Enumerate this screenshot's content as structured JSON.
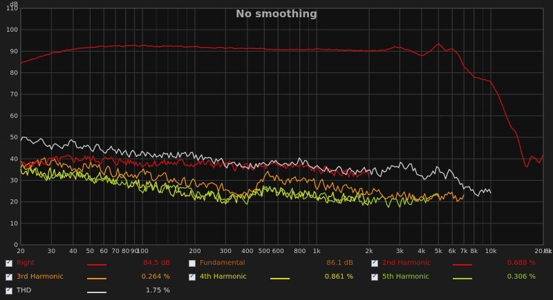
{
  "chart_data": {
    "type": "line",
    "title": "No smoothing",
    "yunit": "dB",
    "xunit": "Hz",
    "xscale": "log",
    "xlim": [
      20,
      20000
    ],
    "ylim": [
      0,
      110
    ],
    "ytick_values": [
      0,
      10,
      20,
      30,
      40,
      50,
      60,
      70,
      80,
      90,
      100,
      110
    ],
    "yticks": [
      "0",
      "10",
      "20",
      "30",
      "40",
      "50",
      "60",
      "70",
      "80",
      "90",
      "100",
      "110"
    ],
    "xtick_values": [
      20,
      30,
      40,
      50,
      60,
      70,
      80,
      90,
      100,
      200,
      300,
      400,
      500,
      600,
      800,
      1000,
      2000,
      3000,
      4000,
      5000,
      6000,
      7000,
      8000,
      10000,
      20000
    ],
    "xticks": [
      "20",
      "30",
      "40",
      "50",
      "60",
      "70",
      "80",
      "90",
      "100",
      "200",
      "300",
      "400",
      "500",
      "600",
      "800",
      "1k",
      "2k",
      "3k",
      "4k",
      "5k",
      "6k",
      "7k",
      "8k",
      "10k",
      "20.0k"
    ],
    "grid": true,
    "series": [
      {
        "name": "Right",
        "color": "#cc1010",
        "noise": 0.25,
        "x": [
          20,
          25,
          30,
          40,
          50,
          70,
          100,
          150,
          200,
          300,
          400,
          500,
          700,
          1000,
          1500,
          2000,
          2500,
          2800,
          3000,
          3500,
          4000,
          4500,
          5000,
          5500,
          6000,
          6500,
          7000,
          8000,
          9000,
          10000,
          11000,
          12000,
          13000,
          14000,
          15000,
          16000,
          17000,
          18000,
          19000,
          20000
        ],
        "y": [
          84.5,
          87,
          89,
          91,
          92,
          92.5,
          92.5,
          92.3,
          92,
          91.5,
          91.3,
          91,
          91,
          91,
          90.5,
          90,
          90.5,
          92,
          92,
          90,
          88,
          90,
          94,
          90,
          91.5,
          89,
          83,
          78,
          77,
          76,
          70,
          62,
          55,
          52,
          43,
          35,
          41,
          40,
          38,
          42
        ]
      },
      {
        "name": "THD",
        "color": "#d0d0d0",
        "noise": 1.8,
        "x": [
          20,
          25,
          30,
          40,
          50,
          60,
          70,
          80,
          100,
          150,
          200,
          300,
          400,
          500,
          600,
          800,
          1000,
          1500,
          2000,
          2500,
          3000,
          3500,
          4000,
          4500,
          5000,
          5500,
          6000,
          6500,
          7000,
          8000,
          9000,
          10000
        ],
        "y": [
          50,
          48,
          46,
          47,
          46,
          45,
          44,
          43,
          42,
          42,
          41,
          38,
          37,
          37,
          38,
          39,
          36,
          34,
          34,
          34,
          38,
          36,
          31,
          31,
          36,
          32,
          34,
          31,
          26,
          25,
          25,
          25
        ]
      },
      {
        "name": "2nd Harmonic",
        "color": "#cc1010",
        "noise": 1.8,
        "x": [
          20,
          30,
          40,
          50,
          70,
          100,
          150,
          200,
          300,
          400,
          500,
          700,
          1000,
          1500,
          2000
        ],
        "y": [
          37,
          39,
          40,
          40,
          39,
          38,
          38,
          38,
          37,
          36,
          36,
          37,
          35,
          33,
          33
        ]
      },
      {
        "name": "3rd Harmonic",
        "color": "#e8901a",
        "noise": 2.2,
        "x": [
          20,
          30,
          40,
          50,
          70,
          100,
          150,
          200,
          300,
          400,
          500,
          700,
          1000,
          1500,
          2000,
          3000,
          4000,
          5000,
          6000,
          7000
        ],
        "y": [
          38,
          38,
          36,
          37,
          34,
          33,
          30,
          28,
          26,
          25,
          32,
          30,
          28,
          26,
          25,
          23,
          22,
          22,
          22,
          22
        ]
      },
      {
        "name": "4th Harmonic",
        "color": "#d8d820",
        "noise": 2.5,
        "x": [
          20,
          30,
          40,
          50,
          70,
          100,
          150,
          200,
          300,
          400,
          500,
          700,
          1000,
          1500,
          2000
        ],
        "y": [
          35,
          33,
          33,
          32,
          30,
          28,
          26,
          24,
          22,
          21,
          25,
          24,
          23,
          22,
          21
        ]
      },
      {
        "name": "5th Harmonic",
        "color": "#9acd32",
        "noise": 2.2,
        "x": [
          20,
          30,
          40,
          50,
          70,
          100,
          150,
          200,
          300,
          400,
          500,
          700,
          1000,
          1500,
          2000,
          3000,
          4000,
          5000
        ],
        "y": [
          36,
          32,
          32,
          31,
          29,
          27,
          25,
          24,
          22,
          21,
          27,
          25,
          22,
          21,
          20,
          20,
          20,
          21
        ]
      }
    ]
  },
  "legend": [
    {
      "label": "Right",
      "value": "84.5 dB",
      "color": "#cc1010",
      "checked": true
    },
    {
      "label": "Fundamental",
      "value": "86.1 dB",
      "color": "#b86010",
      "checked": false
    },
    {
      "label": "2nd Harmonic",
      "value": "0.688 %",
      "color": "#cc1010",
      "checked": true
    },
    {
      "label": "3rd Harmonic",
      "value": "0.264 %",
      "color": "#e8901a",
      "checked": true
    },
    {
      "label": "4th Harmonic",
      "value": "0.861 %",
      "color": "#d8d820",
      "checked": true
    },
    {
      "label": "5th Harmonic",
      "value": "0.306 %",
      "color": "#9acd32",
      "checked": true
    },
    {
      "label": "THD",
      "value": "1.75 %",
      "color": "#d0d0d0",
      "checked": true
    }
  ]
}
